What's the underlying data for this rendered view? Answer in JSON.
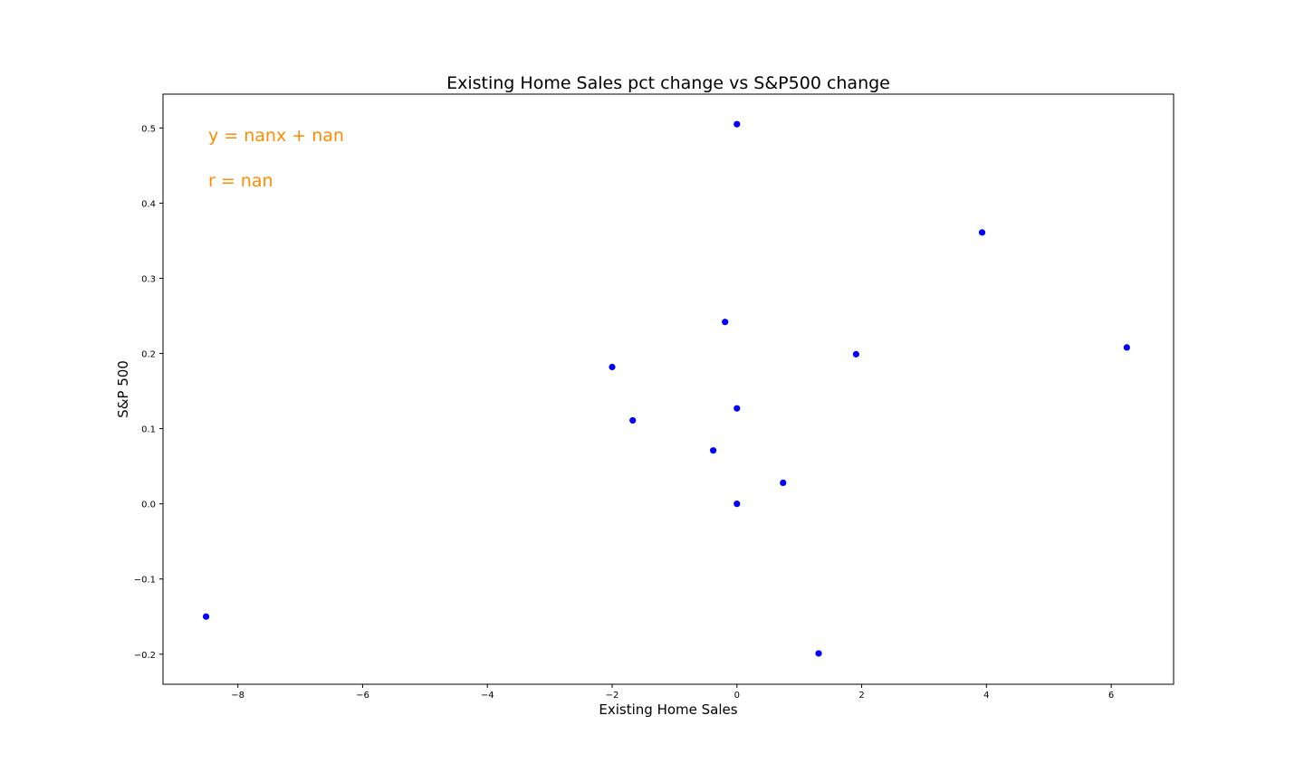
{
  "chart_data": {
    "type": "scatter",
    "title": "Existing Home Sales pct change vs S&P500 change",
    "xlabel": "Existing Home Sales",
    "ylabel": "S&P 500",
    "xlim": [
      -9.2,
      7.0
    ],
    "ylim": [
      -0.24,
      0.545
    ],
    "x_ticks": [
      -8,
      -6,
      -4,
      -2,
      0,
      2,
      4,
      6
    ],
    "x_tick_labels": [
      "−8",
      "−6",
      "−4",
      "−2",
      "0",
      "2",
      "4",
      "6"
    ],
    "y_ticks": [
      -0.2,
      -0.1,
      0.0,
      0.1,
      0.2,
      0.3,
      0.4,
      0.5
    ],
    "y_tick_labels": [
      "−0.2",
      "−0.1",
      "0.0",
      "0.1",
      "0.2",
      "0.3",
      "0.4",
      "0.5"
    ],
    "grid": false,
    "point_color": "#0000ff",
    "annotation_color": "#ff8c00",
    "annotations": [
      "y = nanx + nan",
      "r = nan"
    ],
    "points": [
      {
        "x": 0.0,
        "y": 0.505
      },
      {
        "x": 3.93,
        "y": 0.361
      },
      {
        "x": -0.19,
        "y": 0.242
      },
      {
        "x": 1.91,
        "y": 0.199
      },
      {
        "x": 6.25,
        "y": 0.208
      },
      {
        "x": -2.0,
        "y": 0.182
      },
      {
        "x": 0.0,
        "y": 0.127
      },
      {
        "x": -1.67,
        "y": 0.111
      },
      {
        "x": -0.38,
        "y": 0.071
      },
      {
        "x": 0.74,
        "y": 0.028
      },
      {
        "x": 0.0,
        "y": 0.0
      },
      {
        "x": -8.51,
        "y": -0.15
      },
      {
        "x": 1.31,
        "y": -0.199
      }
    ]
  }
}
